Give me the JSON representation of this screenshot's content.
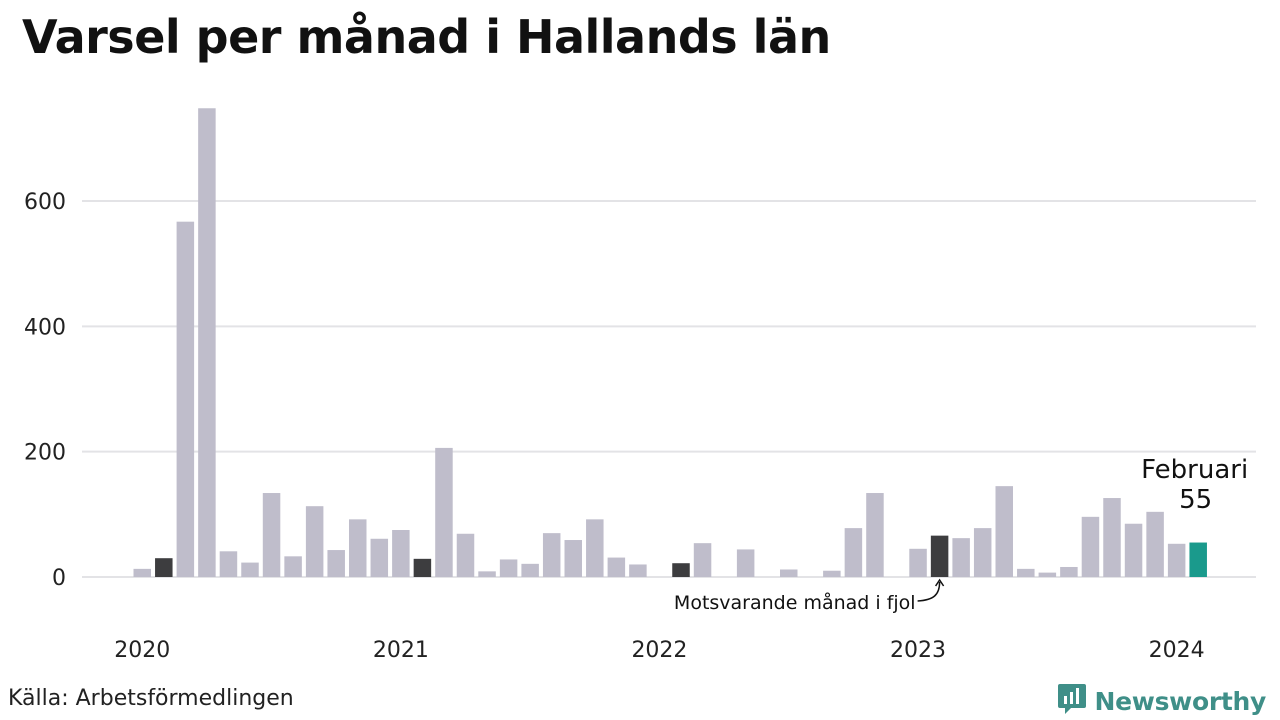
{
  "title": "Varsel per månad i Hallands län",
  "source": "Källa: Arbetsförmedlingen",
  "brand": {
    "name": "Newsworthy",
    "icon": "newsworthy-logo-icon",
    "color": "#3f8f88"
  },
  "colors": {
    "bar": "#bfbdcb",
    "bar_previous_year": "#3d3d3f",
    "bar_current": "#1a9a8c",
    "grid": "#e3e3e6"
  },
  "chart_data": {
    "type": "bar",
    "title": "Varsel per månad i Hallands län",
    "xlabel": "",
    "ylabel": "",
    "ylim": [
      0,
      750
    ],
    "yticks": [
      0,
      200,
      400,
      600
    ],
    "grid": true,
    "year_labels": [
      "2020",
      "2021",
      "2022",
      "2023",
      "2024"
    ],
    "categories": [
      "2020-01",
      "2020-02",
      "2020-03",
      "2020-04",
      "2020-05",
      "2020-06",
      "2020-07",
      "2020-08",
      "2020-09",
      "2020-10",
      "2020-11",
      "2020-12",
      "2021-01",
      "2021-02",
      "2021-03",
      "2021-04",
      "2021-05",
      "2021-06",
      "2021-07",
      "2021-08",
      "2021-09",
      "2021-10",
      "2021-11",
      "2021-12",
      "2022-01",
      "2022-02",
      "2022-03",
      "2022-04",
      "2022-05",
      "2022-06",
      "2022-07",
      "2022-08",
      "2022-09",
      "2022-10",
      "2022-11",
      "2022-12",
      "2023-01",
      "2023-02",
      "2023-03",
      "2023-04",
      "2023-05",
      "2023-06",
      "2023-07",
      "2023-08",
      "2023-09",
      "2023-10",
      "2023-11",
      "2023-12",
      "2024-01",
      "2024-02"
    ],
    "values": [
      13,
      30,
      567,
      748,
      41,
      23,
      134,
      33,
      113,
      43,
      92,
      61,
      75,
      29,
      206,
      69,
      9,
      28,
      21,
      70,
      59,
      92,
      31,
      20,
      0,
      22,
      54,
      0,
      44,
      0,
      12,
      0,
      10,
      78,
      134,
      0,
      45,
      66,
      62,
      78,
      145,
      13,
      7,
      16,
      96,
      126,
      85,
      104,
      53,
      55
    ],
    "previous_year_indices": [
      1,
      13,
      25,
      37
    ],
    "current_index": 49,
    "annotations": {
      "previous_year": "Motsvarande månad i fjol",
      "current_month": "Februari",
      "current_value": "55"
    }
  }
}
